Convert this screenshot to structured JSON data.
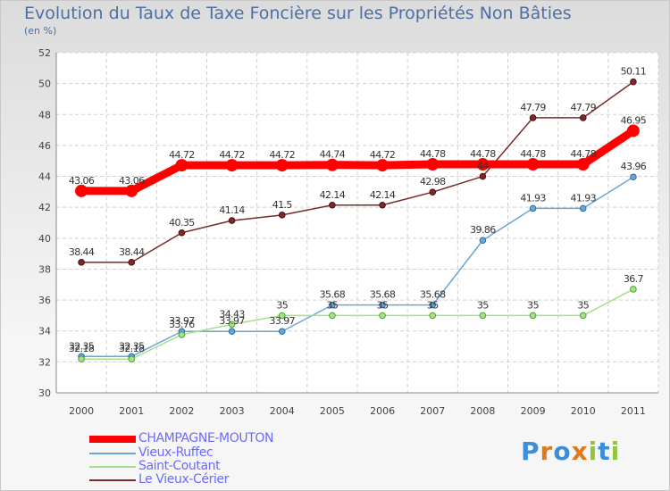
{
  "chart_data": {
    "type": "line",
    "title": "Evolution du Taux de Taxe Foncière sur les Propriétés Non Bâties",
    "subtitle": "(en %)",
    "x": [
      "2000",
      "2001",
      "2002",
      "2003",
      "2004",
      "2005",
      "2006",
      "2007",
      "2008",
      "2009",
      "2010",
      "2011"
    ],
    "ylim": [
      30,
      52
    ],
    "yticks": [
      "30",
      "32",
      "34",
      "36",
      "38",
      "40",
      "42",
      "44",
      "46",
      "48",
      "50",
      "52"
    ],
    "grid": true,
    "legend_position": "bottom-left",
    "series": [
      {
        "name": "CHAMPAGNE-MOUTON",
        "color": "#ff0000",
        "values": [
          43.06,
          43.06,
          44.72,
          44.72,
          44.72,
          44.74,
          44.72,
          44.78,
          44.78,
          44.78,
          44.78,
          46.95
        ],
        "labels": [
          "43.06",
          "43.06",
          "44.72",
          "44.72",
          "44.72",
          "44.74",
          "44.72",
          "44.78",
          "44.78",
          "44.78",
          "44.78",
          "46.95"
        ]
      },
      {
        "name": "Vieux-Ruffec",
        "color": "#6aa6d6",
        "values": [
          32.35,
          32.35,
          33.97,
          33.97,
          33.97,
          35.68,
          35.68,
          35.68,
          39.86,
          41.93,
          41.93,
          43.96
        ],
        "labels": [
          "32.35",
          "32.35",
          "33.97",
          "33.97",
          "33.97",
          "35.68",
          "35.68",
          "35.68",
          "39.86",
          "41.93",
          "41.93",
          "43.96"
        ]
      },
      {
        "name": "Saint-Coutant",
        "color": "#a6e08a",
        "values": [
          32.18,
          32.18,
          33.76,
          34.43,
          35,
          35,
          35,
          35,
          35,
          35,
          35,
          36.7
        ],
        "labels": [
          "32.18",
          "32.18",
          "33.76",
          "34.43",
          "35",
          "35",
          "35",
          "35",
          "35",
          "35",
          "35",
          "36.7"
        ]
      },
      {
        "name": "Le Vieux-Cérier",
        "color": "#7a2a2a",
        "values": [
          38.44,
          38.44,
          40.35,
          41.14,
          41.5,
          42.14,
          42.14,
          42.98,
          44,
          47.79,
          47.79,
          50.11
        ],
        "labels": [
          "38.44",
          "38.44",
          "40.35",
          "41.14",
          "41.5",
          "42.14",
          "42.14",
          "42.98",
          "44",
          "47.79",
          "47.79",
          "50.11"
        ]
      }
    ]
  },
  "logo": {
    "letters": [
      "P",
      "r",
      "o",
      "x",
      "i",
      "t",
      "i"
    ],
    "colors": [
      "#3a8fd8",
      "#e07a1e",
      "#3a8fd8",
      "#e07a1e",
      "#8fc83a",
      "#3a8fd8",
      "#8fc83a"
    ]
  }
}
